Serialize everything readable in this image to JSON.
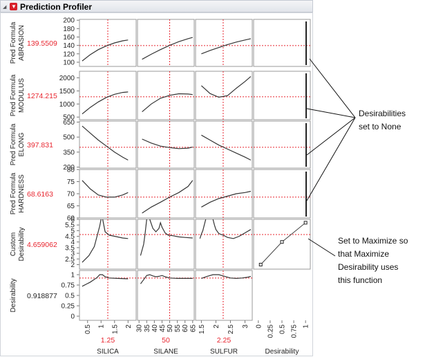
{
  "window": {
    "title": "Prediction Profiler"
  },
  "rows": [
    {
      "label_line1": "Pred Formula",
      "label_line2": "ABRASION",
      "value": "139.5509",
      "ticks": [
        "200",
        "180",
        "160",
        "140",
        "120",
        "100"
      ],
      "ymin": 90,
      "ymax": 202,
      "current": 139.5509,
      "desirability": "None"
    },
    {
      "label_line1": "Pred Formula",
      "label_line2": "MODULUS",
      "value": "1274.215",
      "ticks": [
        "2000",
        "1500",
        "1000",
        "500"
      ],
      "ymin": 400,
      "ymax": 2250,
      "current": 1274.215,
      "desirability": "None"
    },
    {
      "label_line1": "Pred Formula",
      "label_line2": "ELONG",
      "value": "397.831",
      "ticks": [
        "650",
        "500",
        "350",
        "200"
      ],
      "ymin": 190,
      "ymax": 660,
      "current": 397.831,
      "desirability": "None"
    },
    {
      "label_line1": "Pred Formula",
      "label_line2": "HARDNESS",
      "value": "68.6163",
      "ticks": [
        "80",
        "75",
        "70",
        "65",
        "60"
      ],
      "ymin": 60,
      "ymax": 80,
      "current": 68.6163,
      "desirability": "None"
    },
    {
      "label_line1": "Custom",
      "label_line2": "Desirability",
      "value": "4.659062",
      "ticks": [
        "6",
        "5.5",
        "5",
        "4.5",
        "4",
        "3.5",
        "3",
        "2.5",
        "2"
      ],
      "ymin": 1.6,
      "ymax": 6,
      "current": 4.659062,
      "desirability": "Maximize"
    },
    {
      "label_line1": "Desirability",
      "label_line2": "",
      "value": "0.918877",
      "ticks": [
        "1",
        "0.75",
        "0.5",
        "0.25",
        "0"
      ],
      "ymin": -0.1,
      "ymax": 1.1,
      "current": 0.918877,
      "desirability": ""
    }
  ],
  "factors": [
    {
      "name": "SILICA",
      "value": "1.25",
      "current": 1.25,
      "xmin": 0.2,
      "xmax": 2.3,
      "ticks": [
        "0.5",
        "1",
        "1.5",
        "2"
      ]
    },
    {
      "name": "SILANE",
      "value": "50",
      "current": 50,
      "xmin": 29,
      "xmax": 66,
      "ticks": [
        "30",
        "35",
        "40",
        "45",
        "50",
        "55",
        "60",
        "65"
      ]
    },
    {
      "name": "SULFUR",
      "value": "2.25",
      "current": 2.25,
      "xmin": 1.3,
      "xmax": 3.25,
      "ticks": [
        "1.5",
        "2",
        "2.5",
        "3"
      ]
    }
  ],
  "desirability_axis": {
    "name": "Desirability",
    "ticks": [
      "0",
      "0.25",
      "0.5",
      "0.75",
      "1"
    ],
    "xmin": -0.1,
    "xmax": 1.1,
    "points": [
      [
        0.05,
        2
      ],
      [
        0.5,
        4
      ],
      [
        1.0,
        5.7
      ]
    ]
  },
  "curves": [
    [
      {
        "x": [
          0.3,
          0.6,
          0.9,
          1.2,
          1.5,
          1.8,
          2.0
        ],
        "y": [
          103,
          118,
          130,
          139,
          146,
          151,
          153
        ]
      },
      {
        "x": [
          32,
          38,
          44,
          50,
          56,
          62,
          65
        ],
        "y": [
          107,
          119,
          130,
          140,
          149,
          156,
          159
        ]
      },
      {
        "x": [
          1.5,
          1.8,
          2.1,
          2.4,
          2.7,
          3.0,
          3.2
        ],
        "y": [
          120,
          128,
          135,
          142,
          148,
          153,
          156
        ]
      }
    ],
    [
      {
        "x": [
          0.3,
          0.6,
          0.9,
          1.2,
          1.5,
          1.8,
          2.0
        ],
        "y": [
          620,
          870,
          1080,
          1250,
          1370,
          1440,
          1460
        ]
      },
      {
        "x": [
          32,
          38,
          44,
          50,
          56,
          62,
          65
        ],
        "y": [
          700,
          1000,
          1220,
          1330,
          1390,
          1380,
          1360
        ]
      },
      {
        "x": [
          1.5,
          1.8,
          2.1,
          2.4,
          2.7,
          3.0,
          3.2
        ],
        "y": [
          1700,
          1400,
          1260,
          1320,
          1600,
          1860,
          2050
        ]
      }
    ],
    [
      {
        "x": [
          0.3,
          0.6,
          0.9,
          1.2,
          1.5,
          1.8,
          2.0
        ],
        "y": [
          610,
          540,
          470,
          410,
          350,
          300,
          270
        ]
      },
      {
        "x": [
          32,
          38,
          44,
          50,
          56,
          62,
          65
        ],
        "y": [
          480,
          440,
          410,
          395,
          385,
          390,
          400
        ]
      },
      {
        "x": [
          1.5,
          1.8,
          2.1,
          2.4,
          2.7,
          3.0,
          3.2
        ],
        "y": [
          520,
          470,
          420,
          380,
          340,
          300,
          270
        ]
      }
    ],
    [
      {
        "x": [
          0.3,
          0.6,
          0.9,
          1.2,
          1.5,
          1.8,
          2.0
        ],
        "y": [
          75.5,
          72,
          69.5,
          68.6,
          68.6,
          69.5,
          70.5
        ]
      },
      {
        "x": [
          32,
          38,
          44,
          50,
          56,
          62,
          65
        ],
        "y": [
          62,
          64.5,
          66.5,
          68.6,
          70.5,
          73,
          75.5
        ]
      },
      {
        "x": [
          1.5,
          1.8,
          2.1,
          2.4,
          2.7,
          3.0,
          3.2
        ],
        "y": [
          64.5,
          66.5,
          68,
          69,
          70,
          70.5,
          71
        ]
      }
    ],
    [
      {
        "x": [
          0.3,
          0.55,
          0.75,
          0.85,
          0.95,
          1.0
        ],
        "y": [
          2.2,
          2.8,
          3.6,
          4.5,
          5.4,
          6.0
        ]
      },
      {
        "x": [
          1.06,
          1.15,
          1.3,
          1.5,
          1.8,
          2.0
        ],
        "y": [
          6.0,
          4.9,
          4.6,
          4.5,
          4.35,
          4.3
        ]
      },
      {
        "x": [
          31,
          33,
          34,
          35
        ],
        "y": [
          2.8,
          3.8,
          4.8,
          6.0
        ]
      },
      {
        "x": [
          37,
          39,
          41,
          43,
          44,
          45,
          47,
          49,
          52,
          56,
          60,
          65
        ],
        "y": [
          6.0,
          5.2,
          4.9,
          5.2,
          5.7,
          5.3,
          4.8,
          4.6,
          4.55,
          4.45,
          4.4,
          4.35
        ]
      },
      {
        "x": [
          1.45,
          1.5,
          1.55,
          1.6,
          1.65
        ],
        "y": [
          4.3,
          4.7,
          5.0,
          5.5,
          6.0
        ]
      },
      {
        "x": [
          1.9,
          1.95,
          2.0,
          2.1,
          2.25,
          2.4,
          2.6,
          2.8,
          3.0,
          3.2
        ],
        "y": [
          6.0,
          5.5,
          5.1,
          4.75,
          4.6,
          4.4,
          4.3,
          4.5,
          4.8,
          5.1
        ]
      }
    ],
    [
      {
        "x": [
          0.3,
          0.6,
          0.85,
          0.95,
          1.05,
          1.15,
          1.3,
          1.6,
          2.0
        ],
        "y": [
          0.72,
          0.82,
          0.93,
          1.0,
          1.0,
          0.95,
          0.92,
          0.91,
          0.9
        ]
      },
      {
        "x": [
          31,
          33,
          35,
          37,
          39,
          41,
          43,
          45,
          47,
          50,
          55,
          60,
          65
        ],
        "y": [
          0.78,
          0.88,
          0.98,
          1.0,
          0.97,
          0.95,
          0.96,
          0.98,
          0.95,
          0.92,
          0.91,
          0.91,
          0.91
        ]
      },
      {
        "x": [
          1.5,
          1.7,
          1.9,
          2.1,
          2.3,
          2.5,
          2.7,
          2.9,
          3.1,
          3.2
        ],
        "y": [
          0.91,
          0.96,
          1.0,
          1.0,
          0.96,
          0.92,
          0.91,
          0.92,
          0.94,
          0.96
        ]
      }
    ]
  ],
  "annotations": [
    {
      "line1": "Desirabilities",
      "line2": "set to None",
      "line3": "",
      "line4": ""
    },
    {
      "line1": "Set to Maximize so",
      "line2": "that Maximize",
      "line3": "Desirability uses",
      "line4": "this function"
    }
  ],
  "colors": {
    "curve": "#333333",
    "crosshair": "#e8242e",
    "value_text": "#e8242e",
    "border": "#9a9a9a",
    "header_bg": "#e6e9ee"
  }
}
